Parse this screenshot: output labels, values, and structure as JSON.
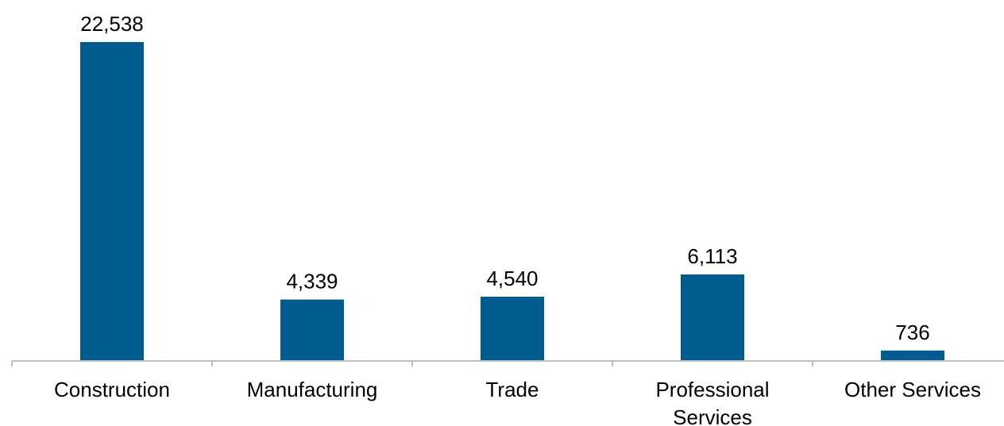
{
  "chart_data": {
    "type": "bar",
    "categories": [
      [
        "Construction"
      ],
      [
        "Manufacturing"
      ],
      [
        "Trade"
      ],
      [
        "Professional",
        "Services"
      ],
      [
        "Other Services"
      ]
    ],
    "values": [
      22538,
      4339,
      4540,
      6113,
      736
    ],
    "value_labels": [
      "22,538",
      "4,339",
      "4,540",
      "6,113",
      "736"
    ],
    "title": "",
    "xlabel": "",
    "ylabel": "",
    "ylim": [
      0,
      22538
    ],
    "grid": false,
    "legend": "none",
    "colors": {
      "bar": "#005b8f",
      "axis": "#bfbfbf",
      "text": "#000000"
    }
  }
}
